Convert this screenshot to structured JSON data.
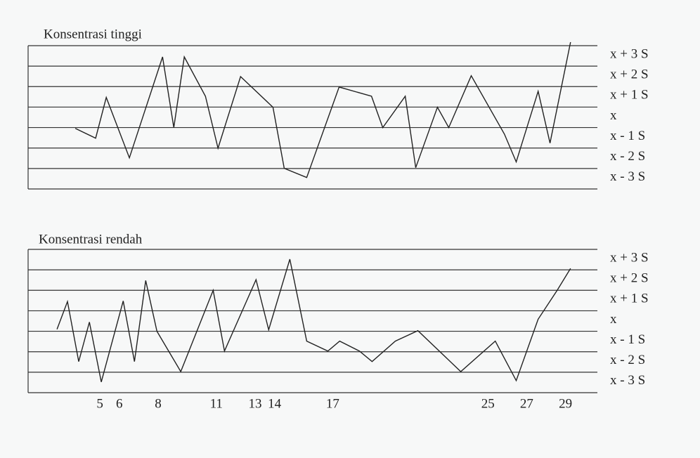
{
  "chart_data": [
    {
      "type": "line",
      "title": "Konsentrasi tinggi",
      "x": [
        3.73,
        4.78,
        5.33,
        6.52,
        8.23,
        8.81,
        9.35,
        10.44,
        11.09,
        12.25,
        13.92,
        14.5,
        15.66,
        17.33,
        19.0,
        19.58,
        20.74,
        21.28,
        22.4,
        22.98,
        24.14,
        25.85,
        26.46,
        27.59,
        28.2,
        29.26
      ],
      "values": [
        -1.04,
        -1.52,
        0.47,
        -2.48,
        2.45,
        -1.0,
        2.45,
        0.53,
        -2.01,
        1.49,
        -0.01,
        -2.99,
        -3.44,
        0.98,
        0.53,
        -1.0,
        0.53,
        -2.96,
        -0.01,
        -1.0,
        1.53,
        -1.32,
        -2.68,
        0.77,
        -1.76,
        3.17
      ],
      "color": "#222222",
      "xlim": [
        1.3,
        30.1
      ],
      "ylim": [
        -4,
        3
      ],
      "yticks": [
        {
          "value": 3,
          "label": "x + 3 S"
        },
        {
          "value": 2,
          "label": "x + 2 S"
        },
        {
          "value": 1,
          "label": "x + 1 S"
        },
        {
          "value": 0,
          "label": "x"
        },
        {
          "value": -1,
          "label": "x - 1 S"
        },
        {
          "value": -2,
          "label": "x - 2 S"
        },
        {
          "value": -3,
          "label": "x - 3 S"
        }
      ],
      "grid": true
    },
    {
      "type": "line",
      "title": "Konsentrasi rendah",
      "x": [
        2.79,
        3.33,
        3.91,
        4.46,
        5.07,
        6.2,
        6.78,
        7.36,
        7.94,
        9.17,
        10.84,
        11.42,
        13.05,
        13.7,
        14.79,
        15.66,
        16.75,
        17.36,
        18.38,
        19.03,
        20.23,
        21.39,
        23.6,
        25.38,
        26.46,
        27.59,
        28.57,
        29.26
      ],
      "values": [
        -0.9,
        0.45,
        -2.48,
        -0.55,
        -3.48,
        0.48,
        -2.48,
        1.48,
        -1.0,
        -2.97,
        1.0,
        -1.97,
        1.52,
        -0.93,
        2.52,
        -1.48,
        -1.97,
        -1.48,
        -1.97,
        -2.48,
        -1.48,
        -0.97,
        -2.97,
        -1.48,
        -3.41,
        -0.41,
        1.0,
        2.07
      ],
      "color": "#222222",
      "xlim": [
        1.3,
        30.1
      ],
      "ylim": [
        -4,
        3
      ],
      "xticks": [
        5,
        6,
        8,
        11,
        13,
        14,
        17,
        25,
        27,
        29
      ],
      "yticks": [
        {
          "value": 3,
          "label": "x + 3 S"
        },
        {
          "value": 2,
          "label": "x + 2 S"
        },
        {
          "value": 1,
          "label": "x + 1 S"
        },
        {
          "value": 0,
          "label": "x"
        },
        {
          "value": -1,
          "label": "x - 1 S"
        },
        {
          "value": -2,
          "label": "x - 2 S"
        },
        {
          "value": -3,
          "label": "x - 3 S"
        }
      ],
      "grid": true
    }
  ]
}
